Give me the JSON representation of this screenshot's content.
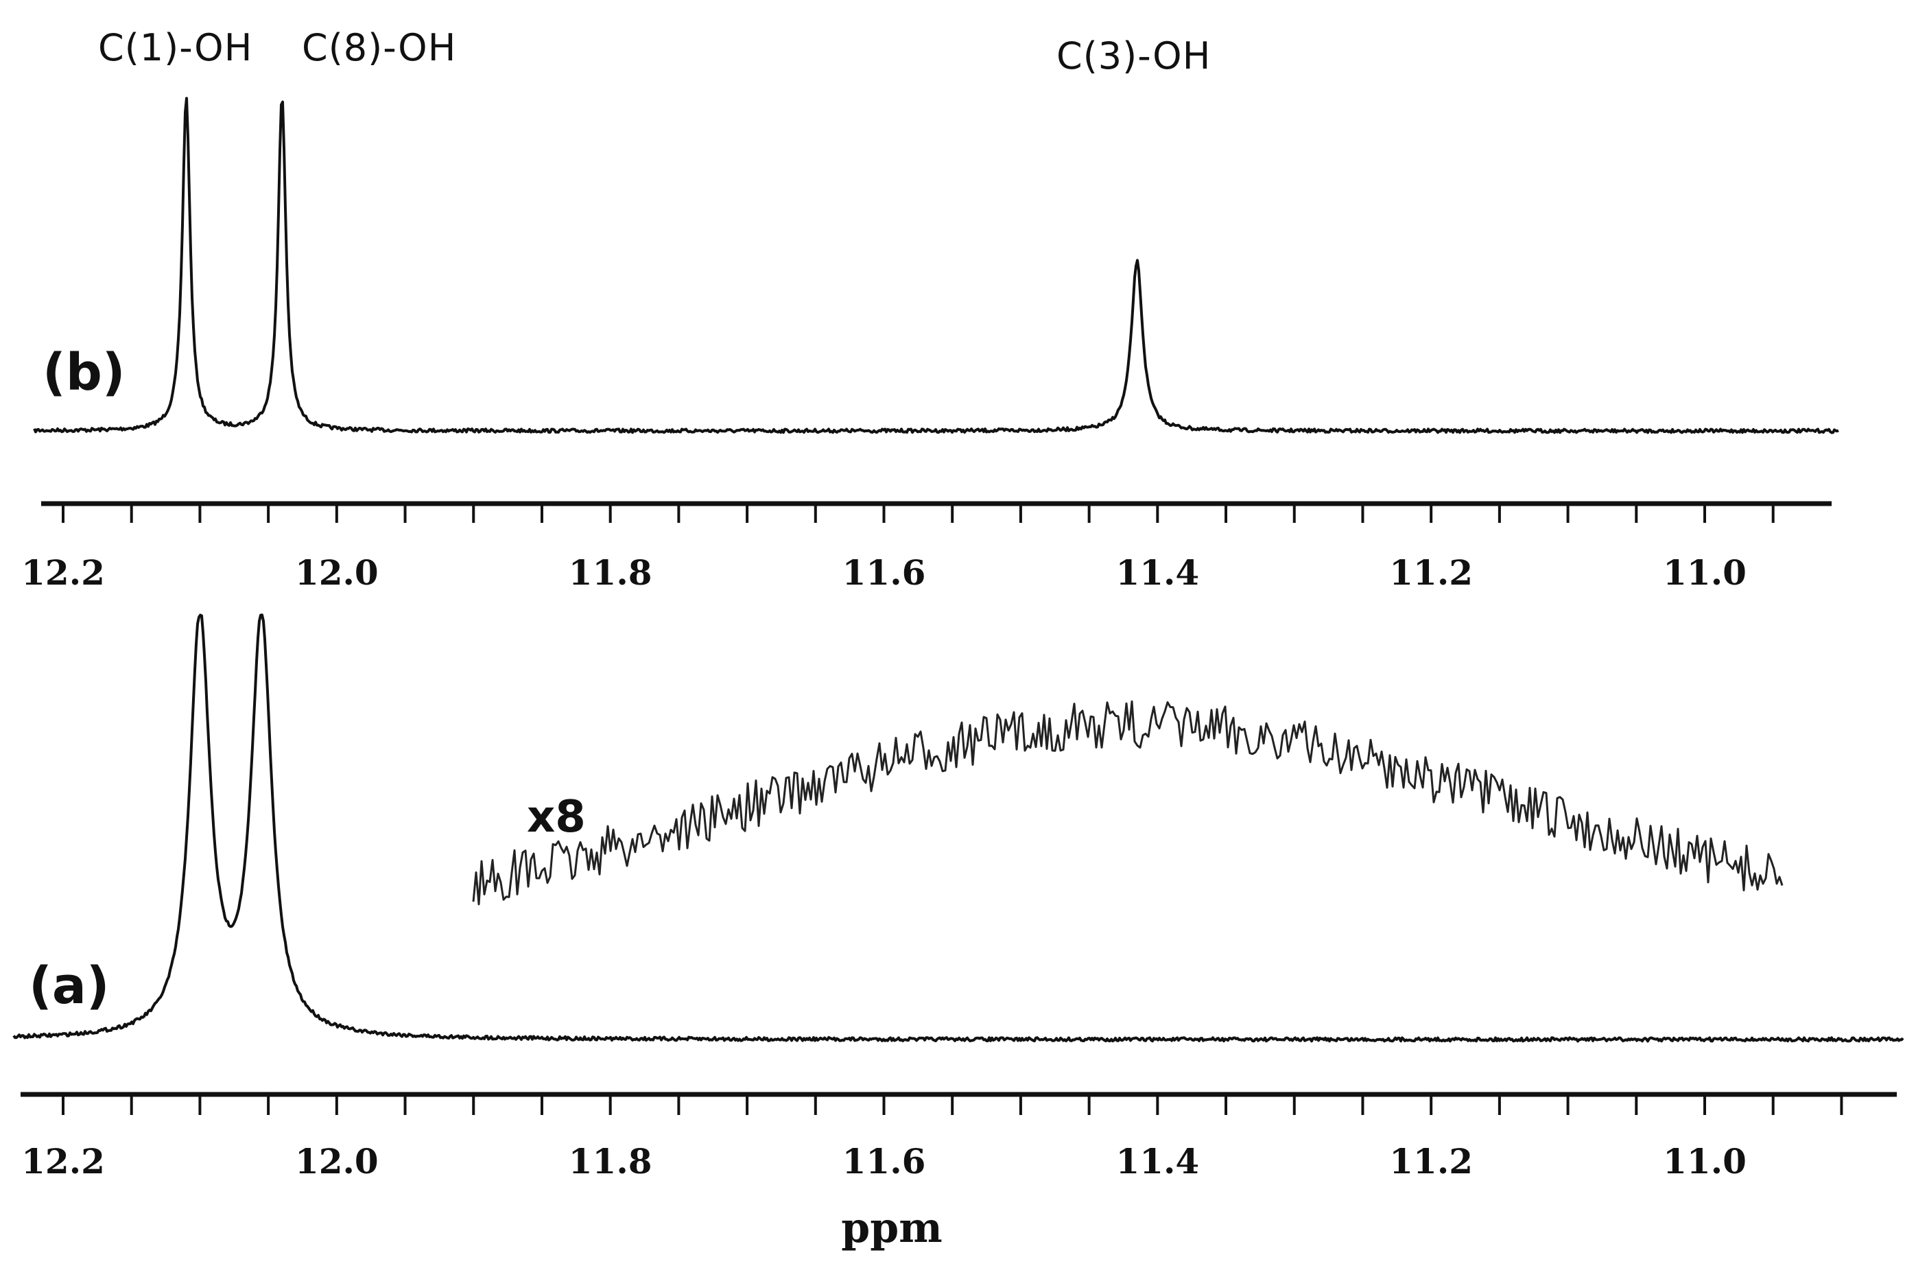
{
  "chart_data": [
    {
      "type": "line",
      "panel_label": "(b)",
      "xlabel": "",
      "x_reversed": true,
      "xlim": [
        12.25,
        10.875
      ],
      "x_ticks": [
        12.2,
        12.0,
        11.8,
        11.6,
        11.4,
        11.2,
        11.0
      ],
      "x_tick_labels": [
        "12.2",
        "12.0",
        "11.8",
        "11.6",
        "11.4",
        "11.2",
        "11.0"
      ],
      "y_relative_range": [
        0,
        1
      ],
      "peaks": [
        {
          "label": "C(1)-OH",
          "ppm": 12.11,
          "height": 1.0,
          "width": 0.0035
        },
        {
          "label": "C(8)-OH",
          "ppm": 12.04,
          "height": 1.0,
          "width": 0.0035
        },
        {
          "label": "C(3)-OH",
          "ppm": 11.415,
          "height": 0.51,
          "width": 0.005
        }
      ]
    },
    {
      "type": "line",
      "panel_label": "(a)",
      "xlabel": "ppm",
      "x_reversed": true,
      "xlim": [
        12.25,
        10.875
      ],
      "x_ticks": [
        12.2,
        12.0,
        11.8,
        11.6,
        11.4,
        11.2,
        11.0
      ],
      "x_tick_labels": [
        "12.2",
        "12.0",
        "11.8",
        "11.6",
        "11.4",
        "11.2",
        "11.0"
      ],
      "y_relative_range": [
        0,
        1
      ],
      "peaks": [
        {
          "ppm": 12.1,
          "height": 1.0,
          "width": 0.009,
          "clipped": true
        },
        {
          "ppm": 12.055,
          "height": 1.0,
          "width": 0.009,
          "clipped": true
        }
      ],
      "inset": {
        "multiplier_label": "x8",
        "xlim": [
          11.91,
          10.955
        ],
        "description_peak_ppm": 11.42,
        "relative_amplitude": 0.6
      }
    }
  ]
}
